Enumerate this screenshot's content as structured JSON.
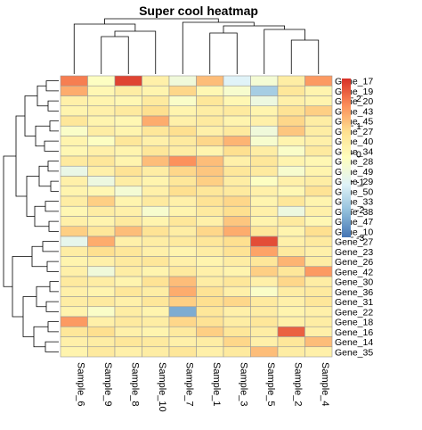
{
  "chart_data": {
    "type": "heatmap",
    "title": "Super cool heatmap",
    "columns": [
      "Sample_6",
      "Sample_9",
      "Sample_8",
      "Sample_10",
      "Sample_7",
      "Sample_1",
      "Sample_3",
      "Sample_5",
      "Sample_2",
      "Sample_4"
    ],
    "rows": [
      "Gene_17",
      "Gene_19",
      "Gene_20",
      "Gene_43",
      "Gene_45",
      "Gene_27",
      "Gene_40",
      "Gene_34",
      "Gene_28",
      "Gene_49",
      "Gene_29",
      "Gene_50",
      "Gene_33",
      "Gene_38",
      "Gene_47",
      "Gene_10",
      "Gene_27",
      "Gene_23",
      "Gene_26",
      "Gene_42",
      "Gene_30",
      "Gene_36",
      "Gene_31",
      "Gene_22",
      "Gene_18",
      "Gene_16",
      "Gene_14",
      "Gene_35"
    ],
    "colorbar": {
      "ticks": [
        2,
        1,
        0,
        -1,
        -2,
        -3
      ],
      "range": [
        -3,
        2.7
      ],
      "colors": [
        "#4575B4",
        "#91BFDB",
        "#E0F3F8",
        "#FFFFBF",
        "#FEE090",
        "#FC8D59",
        "#D73027"
      ]
    },
    "values": [
      [
        1.9,
        -0.2,
        2.5,
        0.3,
        -0.6,
        1.2,
        -1.1,
        -0.5,
        0.4,
        1.6
      ],
      [
        1.4,
        0.1,
        0.4,
        0.2,
        0.9,
        0.1,
        -0.4,
        -1.8,
        0.6,
        0.2
      ],
      [
        0.3,
        0.2,
        0.1,
        0.5,
        -0.3,
        0.6,
        0.1,
        -0.7,
        0.3,
        0.2
      ],
      [
        0.2,
        0.3,
        0.5,
        0.8,
        0.2,
        0.4,
        0.5,
        0.2,
        0.7,
        1.0
      ],
      [
        0.6,
        0.2,
        0.1,
        1.4,
        0.3,
        0.5,
        0.2,
        0.3,
        0.9,
        0.4
      ],
      [
        -0.3,
        0.4,
        0.2,
        0.6,
        0.8,
        0.3,
        0.5,
        -0.6,
        1.1,
        0.4
      ],
      [
        0.2,
        -0.2,
        0.6,
        0.3,
        0.5,
        0.9,
        1.3,
        -0.4,
        0.2,
        0.3
      ],
      [
        0.1,
        0.3,
        0.2,
        0.6,
        0.4,
        0.2,
        0.8,
        0.4,
        -0.3,
        0.5
      ],
      [
        0.5,
        0.6,
        0.2,
        1.2,
        1.7,
        1.2,
        0.3,
        0.6,
        0.2,
        0.1
      ],
      [
        -0.8,
        0.3,
        0.7,
        0.4,
        0.9,
        1.1,
        0.6,
        0.5,
        -0.4,
        0.2
      ],
      [
        0.3,
        -0.7,
        0.4,
        0.2,
        0.6,
        1.0,
        0.4,
        -0.2,
        0.3,
        0.4
      ],
      [
        0.2,
        0.1,
        -0.5,
        0.3,
        0.8,
        0.6,
        0.5,
        0.3,
        0.1,
        0.7
      ],
      [
        0.4,
        1.0,
        0.2,
        0.5,
        0.3,
        0.7,
        0.9,
        0.2,
        0.6,
        0.2
      ],
      [
        0.1,
        0.4,
        0.3,
        -0.4,
        0.2,
        0.5,
        0.8,
        0.3,
        -0.7,
        0.3
      ],
      [
        0.3,
        0.2,
        0.5,
        0.2,
        0.6,
        0.3,
        1.1,
        0.2,
        0.5,
        0.1
      ],
      [
        1.0,
        0.6,
        1.2,
        0.7,
        0.4,
        0.9,
        1.4,
        0.6,
        0.2,
        0.8
      ],
      [
        -0.9,
        1.4,
        0.3,
        0.4,
        0.5,
        0.6,
        0.8,
        2.4,
        0.3,
        0.5
      ],
      [
        0.4,
        0.8,
        0.6,
        0.3,
        0.2,
        0.4,
        0.7,
        1.5,
        0.5,
        0.3
      ],
      [
        0.2,
        0.3,
        0.5,
        0.6,
        0.3,
        0.2,
        0.4,
        0.6,
        1.3,
        0.4
      ],
      [
        0.3,
        -0.6,
        0.4,
        0.2,
        0.5,
        0.3,
        0.2,
        1.0,
        0.6,
        1.6
      ],
      [
        0.5,
        0.4,
        0.2,
        0.7,
        1.2,
        0.4,
        0.6,
        0.3,
        0.9,
        0.4
      ],
      [
        0.3,
        0.2,
        0.6,
        0.4,
        1.4,
        0.7,
        0.3,
        -0.3,
        0.4,
        0.5
      ],
      [
        0.4,
        0.5,
        0.3,
        0.6,
        1.0,
        0.8,
        0.9,
        0.5,
        0.3,
        0.6
      ],
      [
        0.2,
        -0.3,
        0.4,
        0.2,
        -2.3,
        0.6,
        0.3,
        0.4,
        0.2,
        0.3
      ],
      [
        1.6,
        0.3,
        0.5,
        0.4,
        0.9,
        0.7,
        0.4,
        0.6,
        0.3,
        0.4
      ],
      [
        0.6,
        0.8,
        0.3,
        0.2,
        0.5,
        1.0,
        0.6,
        0.4,
        2.2,
        0.3
      ],
      [
        0.3,
        0.4,
        0.6,
        0.5,
        0.3,
        0.4,
        0.9,
        0.3,
        0.6,
        1.2
      ],
      [
        0.2,
        0.5,
        0.3,
        0.4,
        0.6,
        0.3,
        0.5,
        1.2,
        0.4,
        0.3
      ]
    ]
  }
}
